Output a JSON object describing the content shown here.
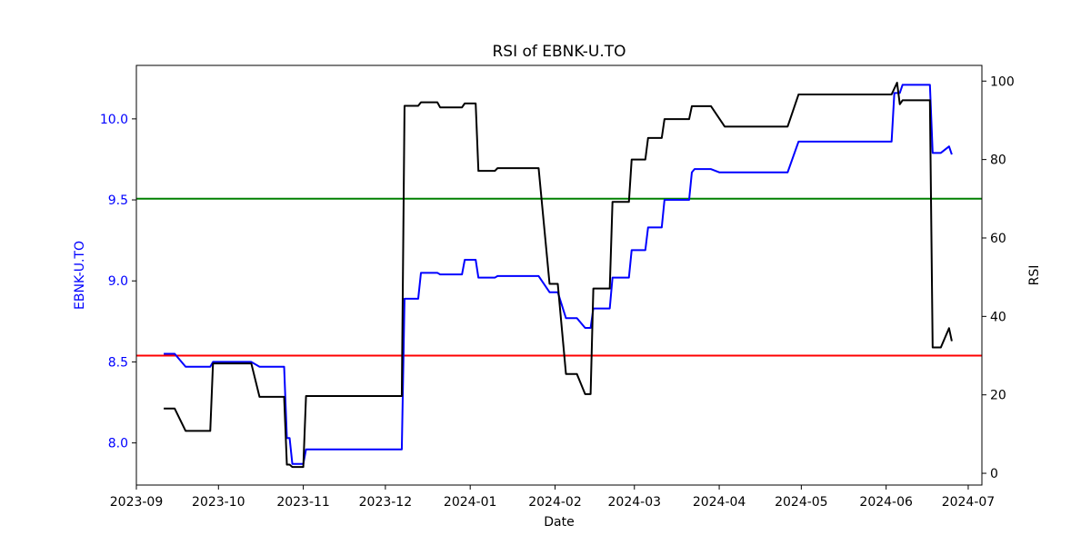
{
  "chart_data": {
    "type": "line",
    "title": "RSI of EBNK-U.TO",
    "xlabel": "Date",
    "ylabel_left": "EBNK-U.TO",
    "ylabel_right": "RSI",
    "x_range": [
      "2023-09-01",
      "2024-07-06"
    ],
    "ylim_left": [
      7.74,
      10.33
    ],
    "ylim_right": [
      -3,
      104
    ],
    "x_ticks": [
      "2023-09",
      "2023-10",
      "2023-11",
      "2023-12",
      "2024-01",
      "2024-02",
      "2024-03",
      "2024-04",
      "2024-05",
      "2024-06",
      "2024-07"
    ],
    "y_ticks_left": [
      "8.0",
      "8.5",
      "9.0",
      "9.5",
      "10.0"
    ],
    "y_ticks_right": [
      "0",
      "20",
      "40",
      "60",
      "80",
      "100"
    ],
    "grid": false,
    "colors": {
      "price": "#0000ff",
      "rsi": "#000000",
      "overbought": "#008000",
      "oversold": "#ff0000",
      "left_axis_text": "#0000ff"
    },
    "reference_lines": [
      {
        "axis": "right",
        "value": 70,
        "color": "#008000"
      },
      {
        "axis": "right",
        "value": 30,
        "color": "#ff0000"
      }
    ],
    "series": [
      {
        "axis": "left",
        "color": "#0000ff",
        "points": [
          [
            "2023-09-11",
            8.55
          ],
          [
            "2023-09-15",
            8.55
          ],
          [
            "2023-09-19",
            8.47
          ],
          [
            "2023-09-28",
            8.47
          ],
          [
            "2023-09-29",
            8.5
          ],
          [
            "2023-10-13",
            8.5
          ],
          [
            "2023-10-16",
            8.47
          ],
          [
            "2023-10-25",
            8.47
          ],
          [
            "2023-10-26",
            8.03
          ],
          [
            "2023-10-27",
            8.03
          ],
          [
            "2023-10-28",
            7.87
          ],
          [
            "2023-11-01",
            7.87
          ],
          [
            "2023-11-02",
            7.96
          ],
          [
            "2023-12-07",
            7.96
          ],
          [
            "2023-12-08",
            8.89
          ],
          [
            "2023-12-13",
            8.89
          ],
          [
            "2023-12-14",
            9.05
          ],
          [
            "2023-12-20",
            9.05
          ],
          [
            "2023-12-21",
            9.04
          ],
          [
            "2023-12-29",
            9.04
          ],
          [
            "2023-12-30",
            9.13
          ],
          [
            "2024-01-03",
            9.13
          ],
          [
            "2024-01-04",
            9.02
          ],
          [
            "2024-01-10",
            9.02
          ],
          [
            "2024-01-11",
            9.03
          ],
          [
            "2024-01-26",
            9.03
          ],
          [
            "2024-01-30",
            8.93
          ],
          [
            "2024-02-02",
            8.93
          ],
          [
            "2024-02-05",
            8.77
          ],
          [
            "2024-02-09",
            8.77
          ],
          [
            "2024-02-12",
            8.71
          ],
          [
            "2024-02-14",
            8.71
          ],
          [
            "2024-02-15",
            8.83
          ],
          [
            "2024-02-21",
            8.83
          ],
          [
            "2024-02-22",
            9.02
          ],
          [
            "2024-02-28",
            9.02
          ],
          [
            "2024-02-29",
            9.19
          ],
          [
            "2024-03-05",
            9.19
          ],
          [
            "2024-03-06",
            9.33
          ],
          [
            "2024-03-11",
            9.33
          ],
          [
            "2024-03-12",
            9.5
          ],
          [
            "2024-03-21",
            9.5
          ],
          [
            "2024-03-22",
            9.67
          ],
          [
            "2024-03-23",
            9.69
          ],
          [
            "2024-03-29",
            9.69
          ],
          [
            "2024-04-01",
            9.67
          ],
          [
            "2024-04-26",
            9.67
          ],
          [
            "2024-04-30",
            9.86
          ],
          [
            "2024-06-03",
            9.86
          ],
          [
            "2024-06-04",
            10.16
          ],
          [
            "2024-06-06",
            10.16
          ],
          [
            "2024-06-07",
            10.21
          ],
          [
            "2024-06-17",
            10.21
          ],
          [
            "2024-06-18",
            9.79
          ],
          [
            "2024-06-21",
            9.79
          ],
          [
            "2024-06-24",
            9.83
          ],
          [
            "2024-06-25",
            9.78
          ]
        ]
      },
      {
        "axis": "right",
        "color": "#000000",
        "points": [
          [
            "2023-09-11",
            16.5
          ],
          [
            "2023-09-15",
            16.5
          ],
          [
            "2023-09-19",
            10.8
          ],
          [
            "2023-09-28",
            10.8
          ],
          [
            "2023-09-29",
            28.0
          ],
          [
            "2023-10-13",
            28.0
          ],
          [
            "2023-10-16",
            19.5
          ],
          [
            "2023-10-25",
            19.5
          ],
          [
            "2023-10-26",
            2.2
          ],
          [
            "2023-10-27",
            2.2
          ],
          [
            "2023-10-28",
            1.6
          ],
          [
            "2023-11-01",
            1.6
          ],
          [
            "2023-11-02",
            19.7
          ],
          [
            "2023-12-07",
            19.7
          ],
          [
            "2023-12-08",
            93.7
          ],
          [
            "2023-12-13",
            93.7
          ],
          [
            "2023-12-14",
            94.6
          ],
          [
            "2023-12-20",
            94.6
          ],
          [
            "2023-12-21",
            93.3
          ],
          [
            "2023-12-29",
            93.3
          ],
          [
            "2023-12-30",
            94.3
          ],
          [
            "2024-01-03",
            94.3
          ],
          [
            "2024-01-04",
            77.1
          ],
          [
            "2024-01-10",
            77.1
          ],
          [
            "2024-01-11",
            77.8
          ],
          [
            "2024-01-26",
            77.8
          ],
          [
            "2024-01-30",
            48.3
          ],
          [
            "2024-02-02",
            48.3
          ],
          [
            "2024-02-05",
            25.3
          ],
          [
            "2024-02-09",
            25.3
          ],
          [
            "2024-02-12",
            20.2
          ],
          [
            "2024-02-14",
            20.2
          ],
          [
            "2024-02-15",
            47.1
          ],
          [
            "2024-02-21",
            47.1
          ],
          [
            "2024-02-22",
            69.2
          ],
          [
            "2024-02-28",
            69.2
          ],
          [
            "2024-02-29",
            80.0
          ],
          [
            "2024-03-05",
            80.0
          ],
          [
            "2024-03-06",
            85.5
          ],
          [
            "2024-03-11",
            85.5
          ],
          [
            "2024-03-12",
            90.3
          ],
          [
            "2024-03-21",
            90.3
          ],
          [
            "2024-03-22",
            93.6
          ],
          [
            "2024-03-29",
            93.6
          ],
          [
            "2024-04-03",
            88.4
          ],
          [
            "2024-04-26",
            88.4
          ],
          [
            "2024-04-30",
            96.6
          ],
          [
            "2024-06-03",
            96.6
          ],
          [
            "2024-06-05",
            99.6
          ],
          [
            "2024-06-06",
            94.1
          ],
          [
            "2024-06-07",
            95.1
          ],
          [
            "2024-06-17",
            95.1
          ],
          [
            "2024-06-18",
            32.1
          ],
          [
            "2024-06-21",
            32.1
          ],
          [
            "2024-06-24",
            37.0
          ],
          [
            "2024-06-25",
            33.7
          ]
        ]
      }
    ]
  }
}
